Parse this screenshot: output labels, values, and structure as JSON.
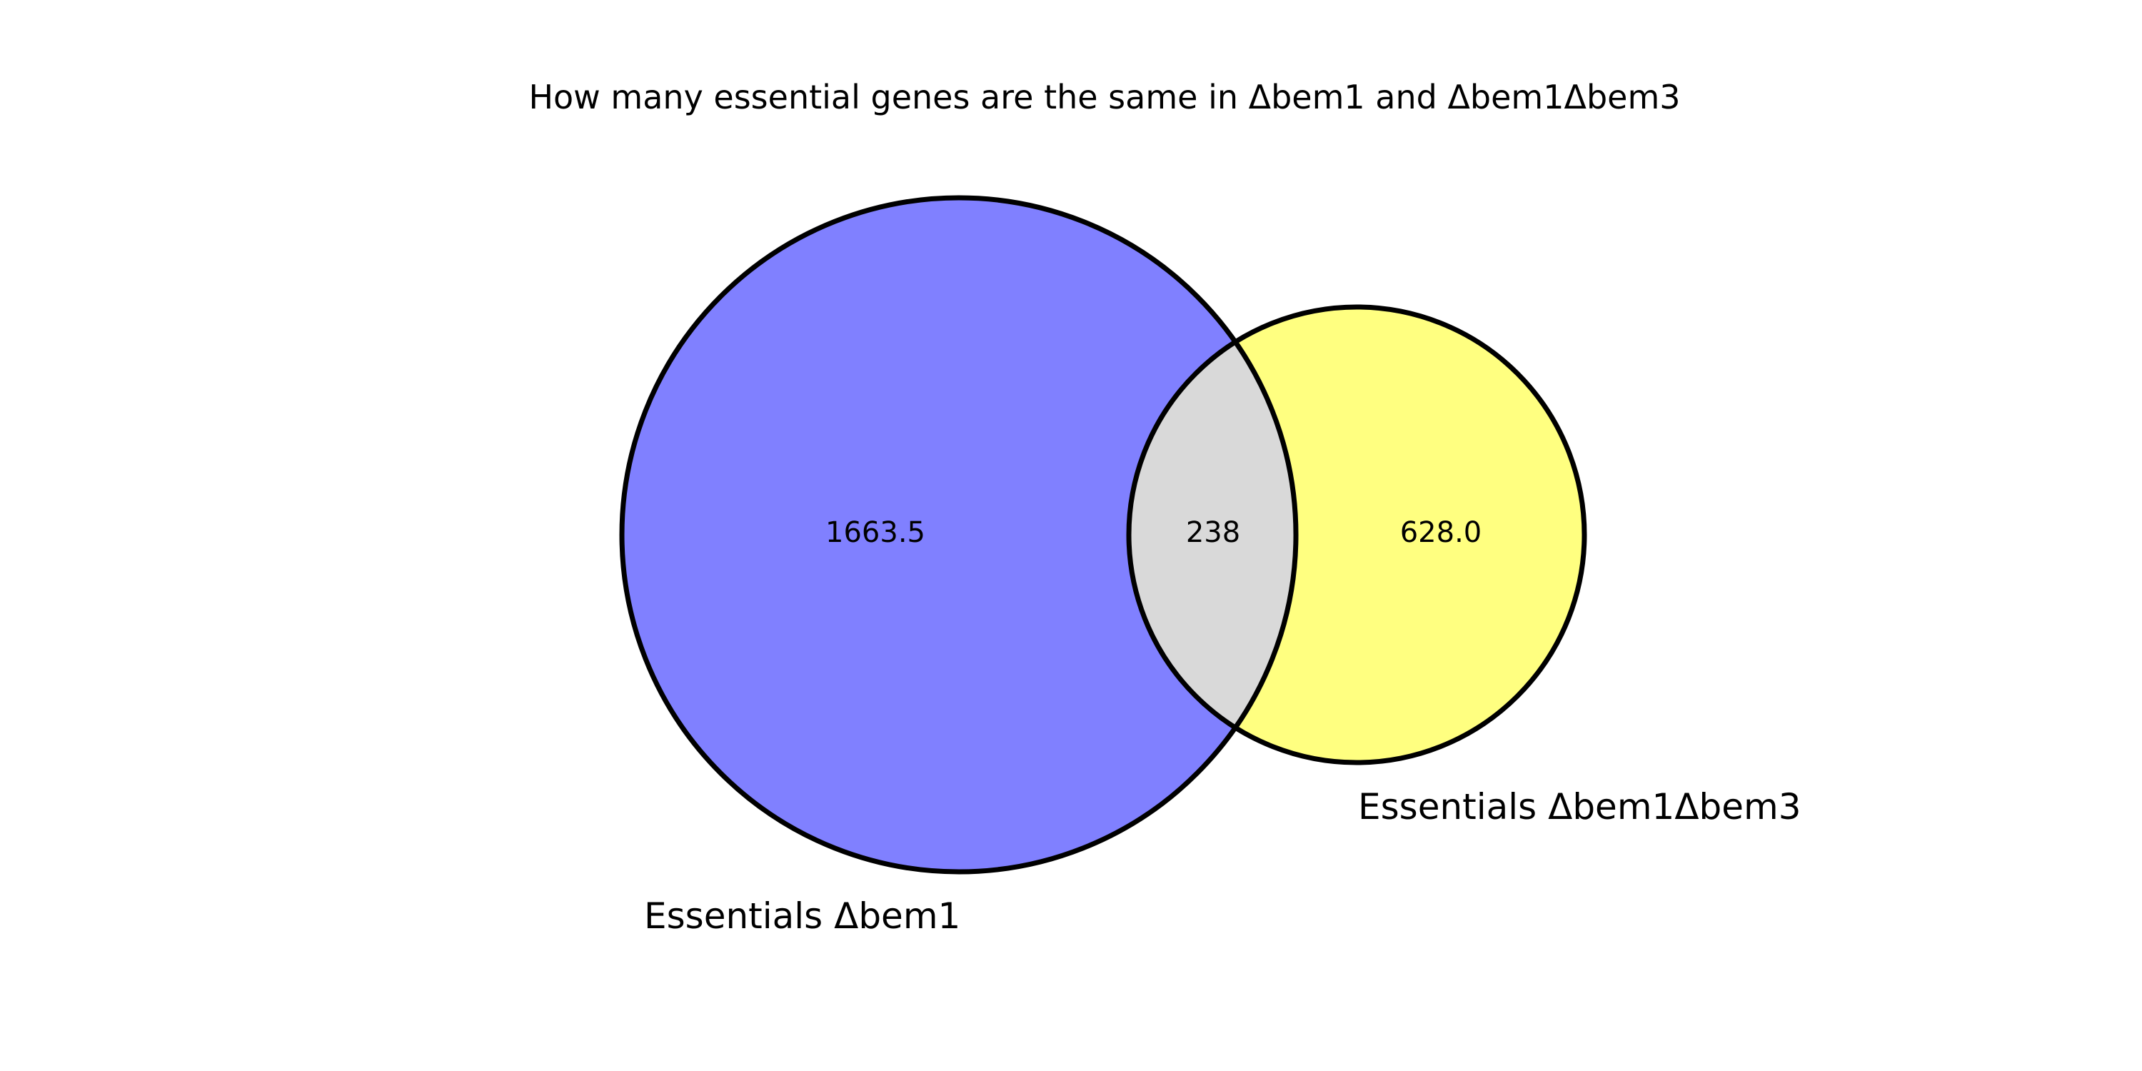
{
  "chart_data": {
    "type": "venn",
    "title": "How many essential genes are the same in Δbem1 and Δbem1Δbem3",
    "sets": [
      {
        "name": "Essentials Δbem1",
        "color": "#8080ff"
      },
      {
        "name": "Essentials Δbem1Δbem3",
        "color": "#ffff80"
      }
    ],
    "regions": [
      {
        "id": "only_set_a",
        "label": "1663.5",
        "value": 1663.5
      },
      {
        "id": "intersection",
        "label": "238",
        "value": 238
      },
      {
        "id": "only_set_b",
        "label": "628.0",
        "value": 628.0
      }
    ],
    "intersection_color": "#d9d9d9",
    "outline_color": "#000000"
  }
}
